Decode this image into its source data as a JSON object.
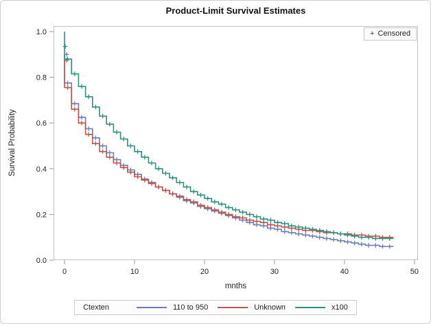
{
  "title": "Product-Limit Survival Estimates",
  "censored_legend": {
    "marker": "+",
    "label": "Censored"
  },
  "axes": {
    "x_label": "mnths",
    "y_label": "Survival Probability",
    "x_ticks": [
      0,
      10,
      20,
      30,
      40,
      50
    ],
    "y_ticks": [
      0.0,
      0.2,
      0.4,
      0.6,
      0.8,
      1.0
    ]
  },
  "legend": {
    "title": "Ctexten",
    "entries": [
      {
        "label": "110 to 950",
        "color": "#6e7cb9"
      },
      {
        "label": "Unknown",
        "color": "#c0544c"
      },
      {
        "label": "x100",
        "color": "#2e9180"
      }
    ]
  },
  "chart_data": {
    "type": "line",
    "subtype": "kaplan-meier-step",
    "title": "Product-Limit Survival Estimates",
    "xlabel": "mnths",
    "ylabel": "Survival Probability",
    "xlim": [
      -1.57,
      50.5
    ],
    "ylim": [
      0,
      1.024
    ],
    "grid": false,
    "legend_position": "bottom",
    "censor_marker": "+",
    "x": [
      0,
      1,
      2,
      3,
      4,
      5,
      6,
      7,
      8,
      9,
      10,
      11,
      12,
      13,
      14,
      15,
      16,
      17,
      18,
      19,
      20,
      21,
      22,
      23,
      24,
      25,
      26,
      27,
      28,
      29,
      30,
      31,
      32,
      33,
      34,
      35,
      36,
      37,
      38,
      39,
      40,
      41,
      42,
      43,
      44,
      45,
      46,
      47
    ],
    "series": [
      {
        "name": "110 to 950",
        "color": "#6e7cb9",
        "start_censor": [
          0.3,
          0.9
        ],
        "values": [
          0.9,
          0.775,
          0.685,
          0.625,
          0.575,
          0.535,
          0.5,
          0.47,
          0.44,
          0.415,
          0.395,
          0.375,
          0.355,
          0.34,
          0.32,
          0.305,
          0.29,
          0.275,
          0.26,
          0.25,
          0.235,
          0.225,
          0.215,
          0.205,
          0.195,
          0.185,
          0.175,
          0.165,
          0.155,
          0.15,
          0.14,
          0.135,
          0.125,
          0.12,
          0.115,
          0.11,
          0.105,
          0.1,
          0.095,
          0.09,
          0.085,
          0.08,
          0.075,
          0.07,
          0.065,
          0.065,
          0.06,
          0.06
        ]
      },
      {
        "name": "Unknown",
        "color": "#c0544c",
        "start_censor": [
          0.3,
          0.875
        ],
        "values": [
          0.875,
          0.755,
          0.66,
          0.6,
          0.55,
          0.51,
          0.475,
          0.45,
          0.425,
          0.405,
          0.385,
          0.365,
          0.35,
          0.335,
          0.32,
          0.305,
          0.29,
          0.28,
          0.265,
          0.255,
          0.24,
          0.23,
          0.22,
          0.21,
          0.2,
          0.19,
          0.185,
          0.175,
          0.17,
          0.165,
          0.155,
          0.15,
          0.145,
          0.14,
          0.135,
          0.13,
          0.13,
          0.125,
          0.12,
          0.12,
          0.115,
          0.115,
          0.11,
          0.11,
          0.105,
          0.105,
          0.1,
          0.1
        ]
      },
      {
        "name": "x100",
        "color": "#2e9180",
        "start_censor": [
          0.1,
          0.935
        ],
        "values": [
          1.0,
          0.88,
          0.815,
          0.76,
          0.715,
          0.67,
          0.63,
          0.595,
          0.56,
          0.53,
          0.5,
          0.475,
          0.45,
          0.425,
          0.4,
          0.38,
          0.36,
          0.34,
          0.32,
          0.3,
          0.285,
          0.27,
          0.255,
          0.245,
          0.23,
          0.22,
          0.21,
          0.2,
          0.19,
          0.18,
          0.175,
          0.165,
          0.16,
          0.15,
          0.145,
          0.14,
          0.135,
          0.13,
          0.125,
          0.12,
          0.115,
          0.11,
          0.105,
          0.1,
          0.1,
          0.095,
          0.095,
          0.095
        ]
      }
    ]
  },
  "style": {
    "frame_color": "#bfbfbf",
    "tick_color": "#9a9a9a",
    "label_color": "#222222",
    "background": "#ffffff"
  }
}
